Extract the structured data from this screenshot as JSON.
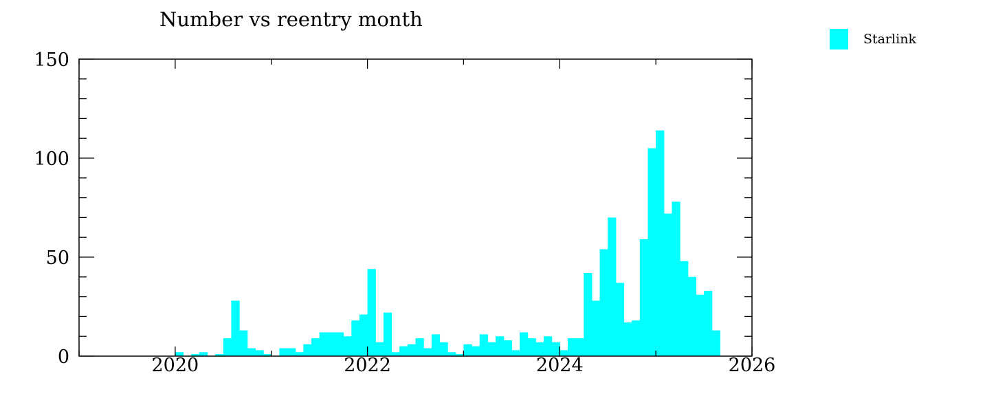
{
  "chart_data": {
    "type": "bar",
    "title": "Number vs reentry month",
    "xlabel": "",
    "ylabel": "",
    "xlim": [
      2019.0,
      2026.0
    ],
    "ylim": [
      0,
      150
    ],
    "x_ticks": [
      2020,
      2022,
      2024,
      2026
    ],
    "y_ticks": [
      0,
      50,
      100,
      150
    ],
    "x_start": 2019.0,
    "bin_width": 0.08333,
    "grid": false,
    "legend_position": "top-right",
    "series": [
      {
        "name": "Starlink",
        "color": "#00ffff",
        "values": [
          0,
          0,
          0,
          0,
          0,
          0,
          0,
          0,
          0,
          0,
          0,
          0,
          2,
          0,
          1,
          2,
          0,
          1,
          9,
          28,
          13,
          4,
          3,
          1,
          0,
          4,
          4,
          2,
          6,
          9,
          12,
          12,
          12,
          10,
          18,
          21,
          44,
          7,
          22,
          2,
          5,
          6,
          9,
          4,
          11,
          7,
          2,
          1,
          6,
          5,
          11,
          7,
          10,
          8,
          3,
          12,
          9,
          7,
          10,
          7,
          3,
          9,
          9,
          42,
          28,
          54,
          70,
          37,
          17,
          18,
          59,
          105,
          114,
          72,
          78,
          48,
          40,
          31,
          33,
          13
        ]
      }
    ]
  }
}
